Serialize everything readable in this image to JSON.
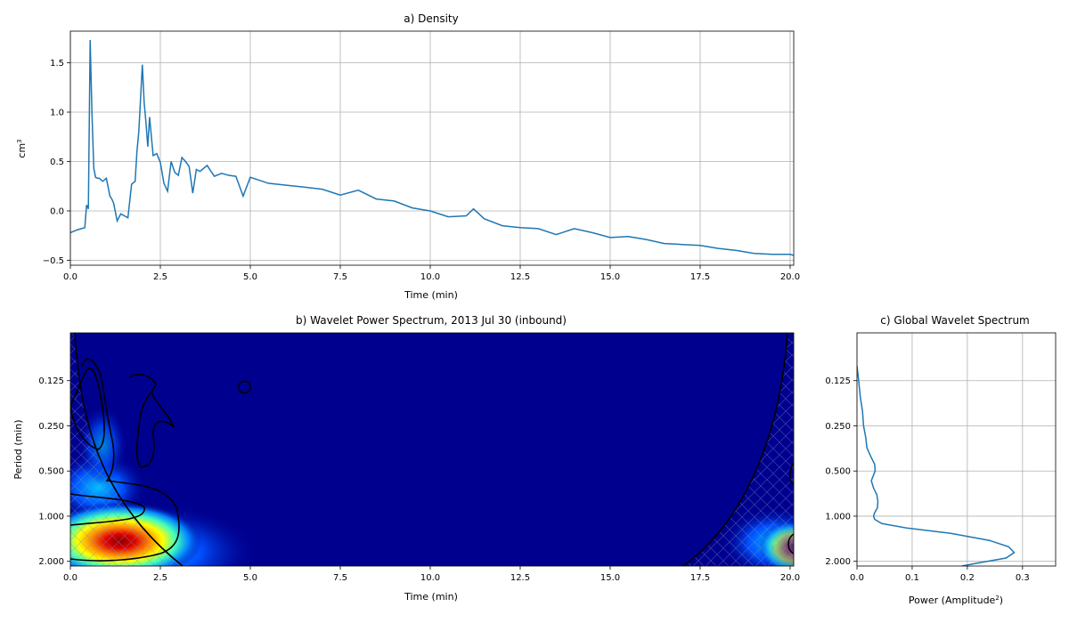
{
  "chart_data": [
    {
      "type": "line",
      "title": "a) Density",
      "xlabel": "Time (min)",
      "ylabel": "cm",
      "ylabel_sup": "3",
      "xlim": [
        0,
        20.1
      ],
      "ylim": [
        -0.55,
        1.82
      ],
      "xticks": [
        "0.0",
        "2.5",
        "5.0",
        "7.5",
        "10.0",
        "12.5",
        "15.0",
        "17.5",
        "20.0"
      ],
      "yticks": [
        "−0.5",
        "0.0",
        "0.5",
        "1.0",
        "1.5"
      ],
      "grid": true,
      "color": "#1f77b4",
      "series": [
        {
          "x": [
            0.0,
            0.2,
            0.4,
            0.45,
            0.5,
            0.55,
            0.6,
            0.65,
            0.7,
            0.75,
            0.8,
            0.9,
            1.0,
            1.1,
            1.15,
            1.2,
            1.3,
            1.4,
            1.5,
            1.6,
            1.7,
            1.8,
            1.85,
            1.9,
            2.0,
            2.05,
            2.1,
            2.15,
            2.2,
            2.3,
            2.4,
            2.5,
            2.6,
            2.7,
            2.8,
            2.9,
            3.0,
            3.1,
            3.2,
            3.3,
            3.4,
            3.5,
            3.6,
            3.8,
            4.0,
            4.2,
            4.4,
            4.6,
            4.8,
            5.0,
            5.5,
            6.0,
            6.5,
            7.0,
            7.5,
            8.0,
            8.5,
            9.0,
            9.5,
            10.0,
            10.5,
            11.0,
            11.2,
            11.5,
            12.0,
            12.5,
            13.0,
            13.5,
            14.0,
            14.5,
            15.0,
            15.5,
            16.0,
            16.5,
            17.0,
            17.5,
            18.0,
            18.5,
            19.0,
            19.5,
            20.0,
            20.1
          ],
          "y": [
            -0.22,
            -0.19,
            -0.17,
            0.06,
            0.02,
            1.73,
            1.0,
            0.43,
            0.34,
            0.33,
            0.33,
            0.3,
            0.33,
            0.15,
            0.12,
            0.08,
            -0.1,
            -0.03,
            -0.05,
            -0.07,
            0.27,
            0.3,
            0.6,
            0.8,
            1.48,
            1.1,
            0.9,
            0.65,
            0.95,
            0.56,
            0.58,
            0.49,
            0.28,
            0.2,
            0.5,
            0.39,
            0.36,
            0.54,
            0.5,
            0.45,
            0.18,
            0.42,
            0.4,
            0.46,
            0.35,
            0.38,
            0.36,
            0.35,
            0.15,
            0.34,
            0.28,
            0.26,
            0.24,
            0.22,
            0.16,
            0.21,
            0.12,
            0.1,
            0.03,
            0.0,
            -0.06,
            -0.05,
            0.02,
            -0.08,
            -0.15,
            -0.17,
            -0.18,
            -0.24,
            -0.18,
            -0.22,
            -0.27,
            -0.26,
            -0.29,
            -0.33,
            -0.34,
            -0.35,
            -0.38,
            -0.4,
            -0.43,
            -0.44,
            -0.44,
            -0.45
          ]
        }
      ]
    },
    {
      "type": "heatmap",
      "title": "b) Wavelet Power Spectrum, 2013 Jul 30 (inbound)",
      "xlabel": "Time (min)",
      "ylabel": "Period (min)",
      "xlim": [
        0,
        20.1
      ],
      "xticks": [
        "0.0",
        "2.5",
        "5.0",
        "7.5",
        "10.0",
        "12.5",
        "15.0",
        "17.5",
        "20.0"
      ],
      "yticks": [
        "0.125",
        "0.250",
        "0.500",
        "1.000",
        "2.000"
      ],
      "ylim_period": [
        0.06,
        2.15
      ],
      "y_scale": "log2",
      "y_inverted": true,
      "colormap": "jet",
      "power_peak": {
        "time": 1.3,
        "period": 1.55
      }
    },
    {
      "type": "line",
      "title": "c) Global Wavelet Spectrum",
      "xlabel": "Power (Amplitude",
      "xlabel_sup": "2",
      "xlabel_end": ")",
      "xlim": [
        0,
        0.36
      ],
      "xticks": [
        "0.0",
        "0.1",
        "0.2",
        "0.3"
      ],
      "yticks": [
        "0.125",
        "0.250",
        "0.500",
        "1.000",
        "2.000"
      ],
      "ylim_period": [
        0.06,
        2.15
      ],
      "y_scale": "log2",
      "y_inverted": true,
      "grid": true,
      "color": "#1f77b4",
      "series": [
        {
          "power": [
            0.0,
            0.003,
            0.006,
            0.01,
            0.012,
            0.016,
            0.018,
            0.025,
            0.032,
            0.033,
            0.026,
            0.03,
            0.036,
            0.038,
            0.037,
            0.032,
            0.03,
            0.032,
            0.045,
            0.09,
            0.17,
            0.24,
            0.275,
            0.285,
            0.27,
            0.22,
            0.19
          ],
          "period": [
            0.1,
            0.125,
            0.16,
            0.2,
            0.25,
            0.3,
            0.35,
            0.4,
            0.45,
            0.5,
            0.58,
            0.65,
            0.72,
            0.8,
            0.88,
            0.95,
            1.0,
            1.05,
            1.12,
            1.2,
            1.3,
            1.45,
            1.6,
            1.75,
            1.9,
            2.05,
            2.15
          ]
        }
      ]
    }
  ]
}
